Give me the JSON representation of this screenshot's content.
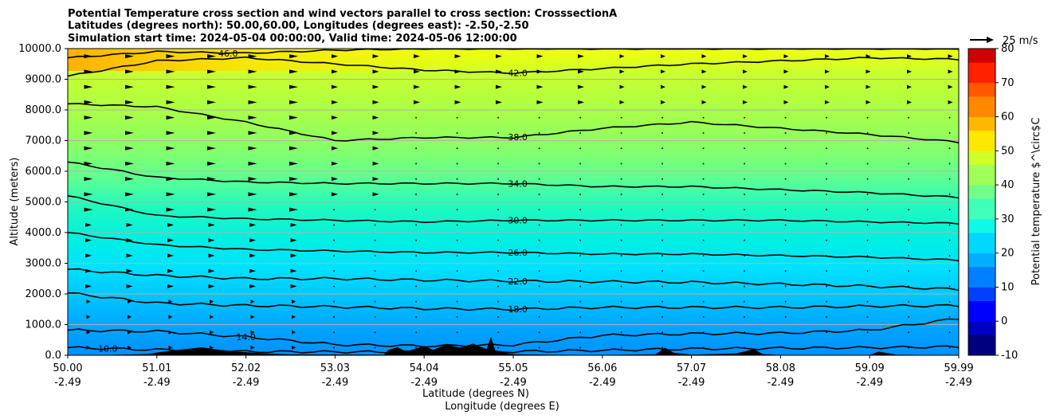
{
  "chart_data": {
    "type": "heatmap",
    "title_lines": [
      "Potential Temperature cross section and wind vectors parallel to cross section: CrosssectionA",
      "Latitudes (degrees north): 50.00,60.00, Longitudes (degrees east): -2.50,-2.50",
      "Simulation start time: 2024-05-04 00:00:00, Valid time: 2024-05-06 12:00:00"
    ],
    "xlabel": "Latitude (degrees N)",
    "xlabel2": "Longitude (degrees E)",
    "ylabel": "Altitude (meters)",
    "colorbar_label": "Potential temperature $^\\circ$C",
    "colorbar_ticks": [
      "-10",
      "0",
      "10",
      "20",
      "30",
      "40",
      "50",
      "60",
      "70",
      "80"
    ],
    "colorbar_range": [
      -10,
      80
    ],
    "x_ticks": [
      {
        "lat": "50.00",
        "lon": "-2.49"
      },
      {
        "lat": "51.01",
        "lon": "-2.49"
      },
      {
        "lat": "52.02",
        "lon": "-2.49"
      },
      {
        "lat": "53.03",
        "lon": "-2.49"
      },
      {
        "lat": "54.04",
        "lon": "-2.49"
      },
      {
        "lat": "55.05",
        "lon": "-2.49"
      },
      {
        "lat": "56.06",
        "lon": "-2.49"
      },
      {
        "lat": "57.07",
        "lon": "-2.49"
      },
      {
        "lat": "58.08",
        "lon": "-2.49"
      },
      {
        "lat": "59.09",
        "lon": "-2.49"
      },
      {
        "lat": "59.99",
        "lon": "-2.49"
      }
    ],
    "xlim": [
      50.0,
      59.99
    ],
    "y_ticks": [
      "0.0",
      "1000.0",
      "2000.0",
      "3000.0",
      "4000.0",
      "5000.0",
      "6000.0",
      "7000.0",
      "8000.0",
      "9000.0",
      "10000.0"
    ],
    "ylim": [
      0,
      10000
    ],
    "grid": "horizontal",
    "wind_key_label": "25 m/s",
    "contours": [
      {
        "label": "10.0",
        "altitude": [
          250,
          180,
          120,
          110,
          110,
          120,
          160,
          210,
          230,
          250,
          280
        ]
      },
      {
        "label": "14.0",
        "altitude": [
          820,
          780,
          600,
          350,
          300,
          340,
          650,
          700,
          720,
          820,
          1200
        ]
      },
      {
        "label": "18.0",
        "altitude": [
          2030,
          1700,
          1620,
          1580,
          1520,
          1500,
          1560,
          1560,
          1560,
          1600,
          1620
        ]
      },
      {
        "label": "22.0",
        "altitude": [
          2800,
          2600,
          2500,
          2500,
          2450,
          2420,
          2400,
          2380,
          2320,
          2250,
          2150
        ]
      },
      {
        "label": "26.0",
        "altitude": [
          4000,
          3600,
          3450,
          3400,
          3350,
          3350,
          3300,
          3300,
          3250,
          3200,
          3100
        ]
      },
      {
        "label": "30.0",
        "altitude": [
          5200,
          4550,
          4450,
          4400,
          4350,
          4400,
          4400,
          4400,
          4400,
          4350,
          4300
        ]
      },
      {
        "label": "34.0",
        "altitude": [
          6300,
          5800,
          5650,
          5600,
          5600,
          5600,
          5500,
          5500,
          5400,
          5300,
          5150
        ]
      },
      {
        "label": "38.0",
        "altitude": [
          8200,
          8100,
          7600,
          7000,
          7100,
          7100,
          7400,
          7600,
          7400,
          7200,
          6950
        ]
      },
      {
        "label": "42.0",
        "altitude": [
          9100,
          9600,
          9700,
          9500,
          9300,
          9200,
          9350,
          9500,
          9600,
          9700,
          9650
        ]
      },
      {
        "label": "46.0",
        "altitude": [
          9700,
          9900,
          9850,
          9950,
          10000,
          10000,
          10000,
          10000,
          10000,
          10000,
          10000
        ]
      }
    ]
  }
}
